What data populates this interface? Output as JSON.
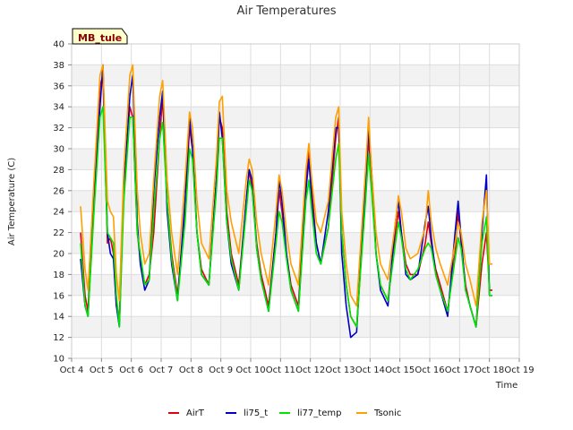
{
  "chart_data": {
    "type": "line",
    "title": "Air Temperatures",
    "xlabel": "Time",
    "ylabel": "Air Temperature (C)",
    "site_label": "MB_tule",
    "ylim": [
      10,
      40
    ],
    "yticks": [
      10,
      12,
      14,
      16,
      18,
      20,
      22,
      24,
      26,
      28,
      30,
      32,
      34,
      36,
      38,
      40
    ],
    "xlim": [
      4,
      19
    ],
    "xtick_values": [
      4,
      5,
      6,
      7,
      8,
      9,
      10,
      11,
      12,
      13,
      14,
      15,
      16,
      17,
      18,
      19
    ],
    "xtick_labels": [
      "Oct 4",
      "Oct 5",
      "Oct 6",
      "Oct 7",
      "Oct 8",
      "Oct 9",
      "Oct 10",
      "Oct 11",
      "Oct 12",
      "Oct 13",
      "Oct 14",
      "Oct 15",
      "Oct 16",
      "Oct 17",
      "Oct 18",
      "Oct 19"
    ],
    "grid": true,
    "legend_position": "bottom",
    "series": [
      {
        "name": "AirT",
        "color": "#e0000f",
        "x": [
          4.3,
          4.45,
          4.55,
          4.75,
          4.95,
          5.05,
          5.2,
          5.3,
          5.4,
          5.5,
          5.6,
          5.75,
          5.95,
          6.05,
          6.2,
          6.3,
          6.45,
          6.6,
          6.75,
          6.95,
          7.05,
          7.2,
          7.35,
          7.55,
          7.8,
          7.95,
          8.05,
          8.2,
          8.35,
          8.6,
          8.85,
          8.95,
          9.05,
          9.2,
          9.35,
          9.6,
          9.85,
          9.95,
          10.05,
          10.2,
          10.35,
          10.6,
          10.85,
          10.95,
          11.05,
          11.2,
          11.35,
          11.6,
          11.85,
          11.95,
          12.05,
          12.2,
          12.35,
          12.6,
          12.85,
          12.95,
          13.05,
          13.2,
          13.35,
          13.55,
          13.85,
          13.95,
          14.05,
          14.2,
          14.35,
          14.6,
          14.85,
          14.95,
          15.05,
          15.2,
          15.35,
          15.6,
          15.85,
          15.95,
          16.05,
          16.2,
          16.35,
          16.6,
          16.85,
          16.95,
          17.05,
          17.2,
          17.35,
          17.55,
          17.75,
          17.9,
          18.0,
          18.1
        ],
        "values": [
          22,
          16,
          14.5,
          26,
          36,
          37,
          21,
          21.5,
          20,
          15,
          14,
          26,
          34,
          33,
          22,
          19.5,
          17,
          18,
          22,
          31,
          35,
          25,
          20,
          16,
          24,
          32,
          30,
          22,
          18.5,
          17,
          27,
          33,
          32,
          24,
          20,
          17,
          25,
          28,
          26,
          21,
          18,
          15,
          22,
          26,
          24,
          20,
          17,
          15,
          27,
          30,
          26,
          21,
          19,
          22.5,
          31,
          33,
          22,
          17,
          14,
          13,
          26,
          31,
          27,
          20,
          17,
          15.5,
          22,
          24,
          22,
          19,
          18,
          18,
          21,
          23,
          21,
          18.5,
          17,
          14.5,
          20,
          24,
          21,
          17,
          15,
          13,
          19,
          22,
          16.5,
          16.5
        ]
      },
      {
        "name": "li75_t",
        "color": "#0000c8",
        "x": [
          4.3,
          4.45,
          4.55,
          4.75,
          4.95,
          5.05,
          5.2,
          5.3,
          5.4,
          5.5,
          5.6,
          5.75,
          5.95,
          6.05,
          6.2,
          6.3,
          6.45,
          6.6,
          6.75,
          6.95,
          7.05,
          7.2,
          7.35,
          7.55,
          7.8,
          7.95,
          8.05,
          8.2,
          8.35,
          8.6,
          8.85,
          8.95,
          9.05,
          9.2,
          9.35,
          9.6,
          9.85,
          9.95,
          10.05,
          10.2,
          10.35,
          10.6,
          10.85,
          10.95,
          11.05,
          11.2,
          11.35,
          11.6,
          11.85,
          11.95,
          12.05,
          12.2,
          12.35,
          12.6,
          12.85,
          12.95,
          13.05,
          13.2,
          13.35,
          13.55,
          13.85,
          13.95,
          14.05,
          14.2,
          14.35,
          14.6,
          14.85,
          14.95,
          15.05,
          15.2,
          15.35,
          15.6,
          15.85,
          15.95,
          16.05,
          16.2,
          16.35,
          16.6,
          16.85,
          16.95,
          17.05,
          17.2,
          17.35,
          17.55,
          17.75,
          17.9,
          18.0,
          18.1
        ],
        "values": [
          19.5,
          15,
          14,
          25,
          34,
          38,
          22,
          20,
          19.5,
          15,
          13,
          26,
          35,
          37,
          23,
          19,
          16.5,
          17.5,
          26,
          33,
          35.5,
          24,
          19,
          15.5,
          25,
          33,
          30,
          22,
          18,
          17,
          27,
          33.5,
          31,
          23,
          19,
          16.5,
          25,
          28,
          27,
          20.5,
          17.5,
          14.5,
          22,
          27,
          25,
          20,
          16.5,
          14.5,
          26,
          29,
          25,
          21,
          19,
          24,
          32,
          32,
          20,
          15,
          12,
          12.5,
          27,
          32,
          28,
          20,
          16.5,
          15,
          23,
          25,
          22,
          18,
          17.5,
          18,
          23,
          24.5,
          21.5,
          18,
          16.5,
          14,
          22,
          25,
          21.5,
          16.5,
          15,
          13,
          22,
          27.5,
          16,
          16
        ]
      },
      {
        "name": "li77_temp",
        "color": "#00e400",
        "x": [
          4.3,
          4.45,
          4.55,
          4.75,
          4.95,
          5.05,
          5.2,
          5.3,
          5.4,
          5.5,
          5.6,
          5.75,
          5.95,
          6.05,
          6.2,
          6.3,
          6.45,
          6.6,
          6.75,
          6.95,
          7.05,
          7.2,
          7.35,
          7.55,
          7.8,
          7.95,
          8.05,
          8.2,
          8.35,
          8.6,
          8.85,
          8.95,
          9.05,
          9.2,
          9.35,
          9.6,
          9.85,
          9.95,
          10.05,
          10.2,
          10.35,
          10.6,
          10.85,
          10.95,
          11.05,
          11.2,
          11.35,
          11.6,
          11.85,
          11.95,
          12.05,
          12.2,
          12.35,
          12.6,
          12.85,
          12.95,
          13.05,
          13.2,
          13.35,
          13.55,
          13.85,
          13.95,
          14.05,
          14.2,
          14.35,
          14.6,
          14.85,
          14.95,
          15.05,
          15.2,
          15.35,
          15.6,
          15.85,
          15.95,
          16.05,
          16.2,
          16.35,
          16.6,
          16.85,
          16.95,
          17.05,
          17.2,
          17.35,
          17.55,
          17.75,
          17.9,
          18.0,
          18.1
        ],
        "values": [
          21,
          15,
          14,
          24,
          33,
          34,
          22,
          21.5,
          21,
          16,
          13,
          25,
          33,
          33,
          22,
          20,
          17,
          17.5,
          24,
          31,
          32.5,
          25,
          19.5,
          15.5,
          23,
          30,
          29,
          22,
          18,
          17,
          26,
          31,
          31,
          23,
          19.5,
          16.5,
          24,
          27,
          26,
          20.5,
          17.5,
          14.5,
          21,
          24,
          23,
          19.5,
          16.5,
          14.5,
          25,
          27,
          24,
          20,
          19,
          22.5,
          29,
          30.5,
          22,
          17,
          14,
          13,
          25,
          29.5,
          26,
          20,
          17,
          15.5,
          21,
          23,
          21.5,
          18.5,
          17.5,
          18.5,
          20.5,
          21,
          20.5,
          18,
          16.5,
          14.5,
          19.5,
          21.5,
          20.5,
          16.5,
          15,
          13,
          21,
          23.5,
          16,
          16
        ]
      },
      {
        "name": "Tsonic",
        "color": "#ff9f00",
        "x": [
          4.3,
          4.45,
          4.55,
          4.75,
          4.95,
          5.05,
          5.2,
          5.3,
          5.4,
          5.5,
          5.6,
          5.75,
          5.95,
          6.05,
          6.2,
          6.3,
          6.45,
          6.6,
          6.75,
          6.95,
          7.05,
          7.2,
          7.35,
          7.55,
          7.8,
          7.95,
          8.05,
          8.2,
          8.35,
          8.6,
          8.85,
          8.95,
          9.05,
          9.2,
          9.35,
          9.6,
          9.85,
          9.95,
          10.05,
          10.2,
          10.35,
          10.6,
          10.85,
          10.95,
          11.05,
          11.2,
          11.35,
          11.6,
          11.85,
          11.95,
          12.05,
          12.2,
          12.35,
          12.6,
          12.85,
          12.95,
          13.05,
          13.2,
          13.35,
          13.55,
          13.85,
          13.95,
          14.05,
          14.2,
          14.35,
          14.6,
          14.85,
          14.95,
          15.05,
          15.2,
          15.35,
          15.6,
          15.85,
          15.95,
          16.05,
          16.2,
          16.35,
          16.6,
          16.85,
          16.95,
          17.05,
          17.2,
          17.35,
          17.55,
          17.75,
          17.9,
          18.0,
          18.1
        ],
        "values": [
          24.5,
          18.5,
          16.5,
          27,
          37,
          38,
          25,
          24,
          23.5,
          18,
          15.5,
          28,
          37,
          38,
          26,
          22,
          19,
          20,
          27,
          35,
          36.5,
          27,
          22,
          18,
          27,
          33.5,
          32,
          25,
          21,
          19.5,
          29,
          34.5,
          35,
          26,
          23,
          20,
          27,
          29,
          28,
          23,
          20,
          17,
          24,
          27.5,
          26,
          22,
          19,
          17,
          28,
          30.5,
          27,
          23,
          22,
          25,
          33,
          34,
          24,
          19,
          16,
          15,
          28,
          33,
          28,
          22,
          19,
          17.5,
          23,
          25.5,
          24,
          20.5,
          19.5,
          20,
          22.5,
          26,
          23,
          20.5,
          19,
          17,
          21,
          23,
          22,
          19,
          17.5,
          15,
          23,
          26,
          19,
          19
        ]
      }
    ]
  }
}
